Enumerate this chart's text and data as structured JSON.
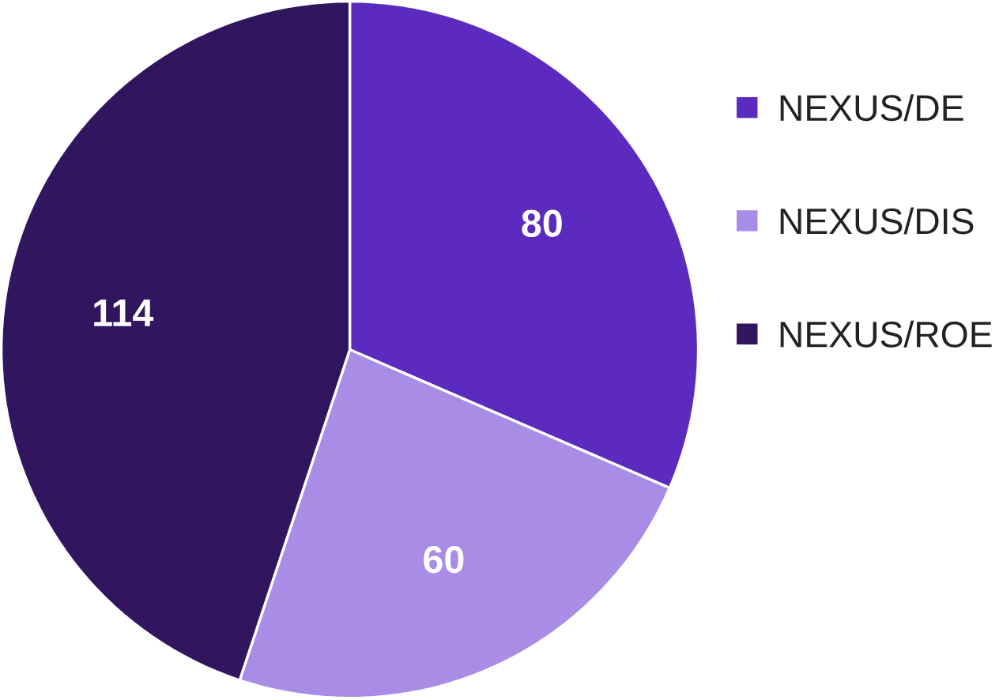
{
  "chart_data": {
    "type": "pie",
    "categories": [
      "NEXUS/DE",
      "NEXUS/DIS",
      "NEXUS/ROE"
    ],
    "values": [
      80,
      60,
      114
    ],
    "colors": [
      "#5b2bbf",
      "#a98ce6",
      "#32155f"
    ],
    "data_labels": true,
    "legend": "right"
  }
}
